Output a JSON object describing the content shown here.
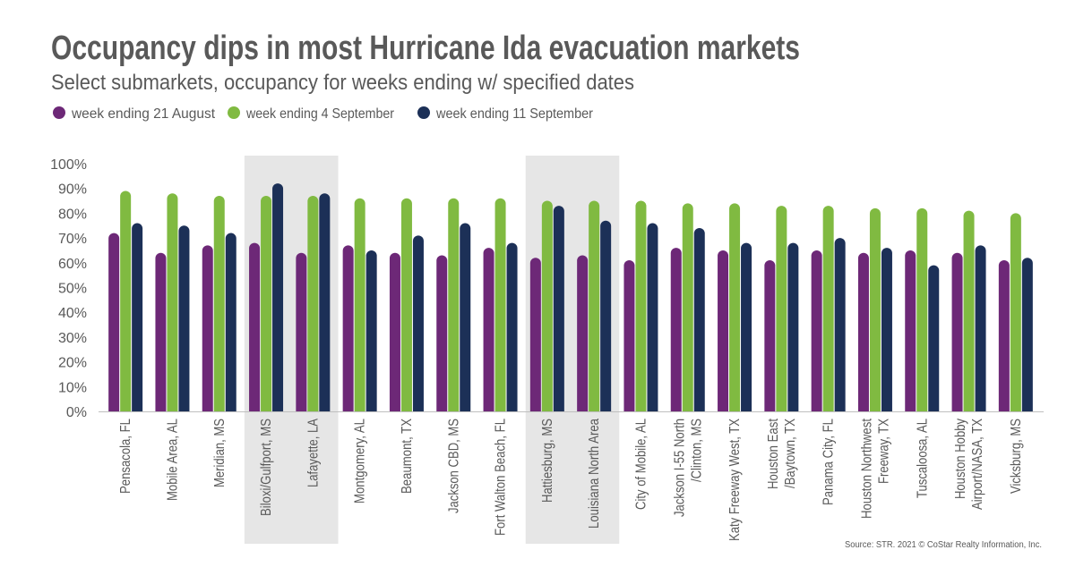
{
  "chart_data": {
    "type": "bar",
    "title": "Occupancy dips in most Hurricane Ida evacuation markets",
    "subtitle": "Select submarkets, occupancy for weeks ending w/ specified dates",
    "xlabel": "",
    "ylabel": "",
    "ylim": [
      0,
      100
    ],
    "yticks": [
      "0%",
      "10%",
      "20%",
      "30%",
      "40%",
      "50%",
      "60%",
      "70%",
      "80%",
      "90%",
      "100%"
    ],
    "legend_placement": "top-left",
    "categories": [
      [
        "Pensacola, FL"
      ],
      [
        "Mobile Area, AL"
      ],
      [
        "Meridian, MS"
      ],
      [
        "Biloxi/Gulfport, MS"
      ],
      [
        "Lafayette, LA"
      ],
      [
        "Montgomery, AL"
      ],
      [
        "Beaumont, TX"
      ],
      [
        "Jackson CBD, MS"
      ],
      [
        "Fort Walton Beach, FL"
      ],
      [
        "Hattiesburg, MS"
      ],
      [
        "Louisiana North Area"
      ],
      [
        "City of Mobile, AL"
      ],
      [
        "Jackson I-55 North",
        "/Clinton, MS"
      ],
      [
        "Katy Freeway West, TX"
      ],
      [
        "Houston East",
        "/Baytown, TX"
      ],
      [
        "Panama City, FL"
      ],
      [
        "Houston Northwest",
        "Freeway, TX"
      ],
      [
        "Tuscaloosa, AL"
      ],
      [
        "Houston Hobby",
        "Airport/NASA, TX"
      ],
      [
        "Vicksburg, MS"
      ]
    ],
    "highlighted_categories": [
      3,
      4,
      9,
      10
    ],
    "series": [
      {
        "name": "week ending 21 August",
        "color": "#6d2877",
        "values": [
          72,
          64,
          67,
          68,
          64,
          67,
          64,
          63,
          66,
          62,
          63,
          61,
          66,
          65,
          61,
          65,
          64,
          65,
          64,
          61
        ]
      },
      {
        "name": "week ending 4 September",
        "color": "#80ba41",
        "values": [
          89,
          88,
          87,
          87,
          87,
          86,
          86,
          86,
          86,
          85,
          85,
          85,
          84,
          84,
          83,
          83,
          82,
          82,
          81,
          80
        ]
      },
      {
        "name": "week ending 11 September",
        "color": "#1c3057",
        "values": [
          76,
          75,
          72,
          92,
          88,
          65,
          71,
          76,
          68,
          83,
          77,
          76,
          74,
          68,
          68,
          70,
          66,
          59,
          67,
          62
        ]
      }
    ],
    "source": "Source: STR. 2021 © CoStar Realty Information, Inc."
  }
}
